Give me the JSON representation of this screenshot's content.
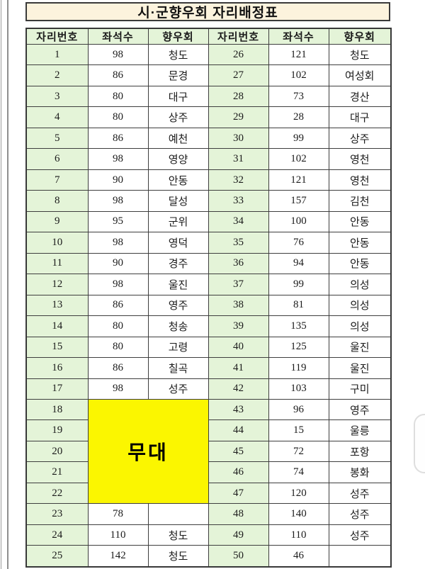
{
  "title": "시·군향우회 자리배정표",
  "colors": {
    "title_background": "#fcf3dd",
    "header_green": "#e4f4d8",
    "stage_yellow": "#fbf600",
    "border": "#3a3a3a"
  },
  "table": {
    "headers": [
      "자리번호",
      "좌석수",
      "향우회",
      "자리번호",
      "좌석수",
      "향우회"
    ],
    "stage": {
      "label": "무대",
      "row_start": 18,
      "row_end": 22
    },
    "rows": [
      {
        "left": {
          "no": "1",
          "seats": "98",
          "group": "청도"
        },
        "right": {
          "no": "26",
          "seats": "121",
          "group": "청도"
        }
      },
      {
        "left": {
          "no": "2",
          "seats": "86",
          "group": "문경"
        },
        "right": {
          "no": "27",
          "seats": "102",
          "group": "여성회"
        }
      },
      {
        "left": {
          "no": "3",
          "seats": "80",
          "group": "대구"
        },
        "right": {
          "no": "28",
          "seats": "73",
          "group": "경산"
        }
      },
      {
        "left": {
          "no": "4",
          "seats": "80",
          "group": "상주"
        },
        "right": {
          "no": "29",
          "seats": "28",
          "group": "대구"
        }
      },
      {
        "left": {
          "no": "5",
          "seats": "86",
          "group": "예천"
        },
        "right": {
          "no": "30",
          "seats": "99",
          "group": "상주"
        }
      },
      {
        "left": {
          "no": "6",
          "seats": "98",
          "group": "영양"
        },
        "right": {
          "no": "31",
          "seats": "102",
          "group": "영천"
        }
      },
      {
        "left": {
          "no": "7",
          "seats": "90",
          "group": "안동"
        },
        "right": {
          "no": "32",
          "seats": "121",
          "group": "영천"
        }
      },
      {
        "left": {
          "no": "8",
          "seats": "98",
          "group": "달성"
        },
        "right": {
          "no": "33",
          "seats": "157",
          "group": "김천"
        }
      },
      {
        "left": {
          "no": "9",
          "seats": "95",
          "group": "군위"
        },
        "right": {
          "no": "34",
          "seats": "100",
          "group": "안동"
        }
      },
      {
        "left": {
          "no": "10",
          "seats": "98",
          "group": "영덕"
        },
        "right": {
          "no": "35",
          "seats": "76",
          "group": "안동"
        }
      },
      {
        "left": {
          "no": "11",
          "seats": "90",
          "group": "경주"
        },
        "right": {
          "no": "36",
          "seats": "94",
          "group": "안동"
        }
      },
      {
        "left": {
          "no": "12",
          "seats": "98",
          "group": "울진"
        },
        "right": {
          "no": "37",
          "seats": "99",
          "group": "의성"
        }
      },
      {
        "left": {
          "no": "13",
          "seats": "86",
          "group": "영주"
        },
        "right": {
          "no": "38",
          "seats": "81",
          "group": "의성"
        }
      },
      {
        "left": {
          "no": "14",
          "seats": "80",
          "group": "청송"
        },
        "right": {
          "no": "39",
          "seats": "135",
          "group": "의성"
        }
      },
      {
        "left": {
          "no": "15",
          "seats": "80",
          "group": "고령"
        },
        "right": {
          "no": "40",
          "seats": "125",
          "group": "울진"
        }
      },
      {
        "left": {
          "no": "16",
          "seats": "86",
          "group": "칠곡"
        },
        "right": {
          "no": "41",
          "seats": "119",
          "group": "울진"
        }
      },
      {
        "left": {
          "no": "17",
          "seats": "98",
          "group": "성주"
        },
        "right": {
          "no": "42",
          "seats": "103",
          "group": "구미"
        }
      },
      {
        "left": {
          "no": "18"
        },
        "right": {
          "no": "43",
          "seats": "96",
          "group": "영주"
        }
      },
      {
        "left": {
          "no": "19"
        },
        "right": {
          "no": "44",
          "seats": "15",
          "group": "울릉"
        }
      },
      {
        "left": {
          "no": "20"
        },
        "right": {
          "no": "45",
          "seats": "72",
          "group": "포항"
        }
      },
      {
        "left": {
          "no": "21"
        },
        "right": {
          "no": "46",
          "seats": "74",
          "group": "봉화"
        }
      },
      {
        "left": {
          "no": "22"
        },
        "right": {
          "no": "47",
          "seats": "120",
          "group": "성주"
        }
      },
      {
        "left": {
          "no": "23",
          "seats": "78",
          "group": ""
        },
        "right": {
          "no": "48",
          "seats": "140",
          "group": "성주"
        }
      },
      {
        "left": {
          "no": "24",
          "seats": "110",
          "group": "청도"
        },
        "right": {
          "no": "49",
          "seats": "110",
          "group": "성주"
        }
      },
      {
        "left": {
          "no": "25",
          "seats": "142",
          "group": "청도"
        },
        "right": {
          "no": "50",
          "seats": "46",
          "group": ""
        }
      }
    ]
  }
}
